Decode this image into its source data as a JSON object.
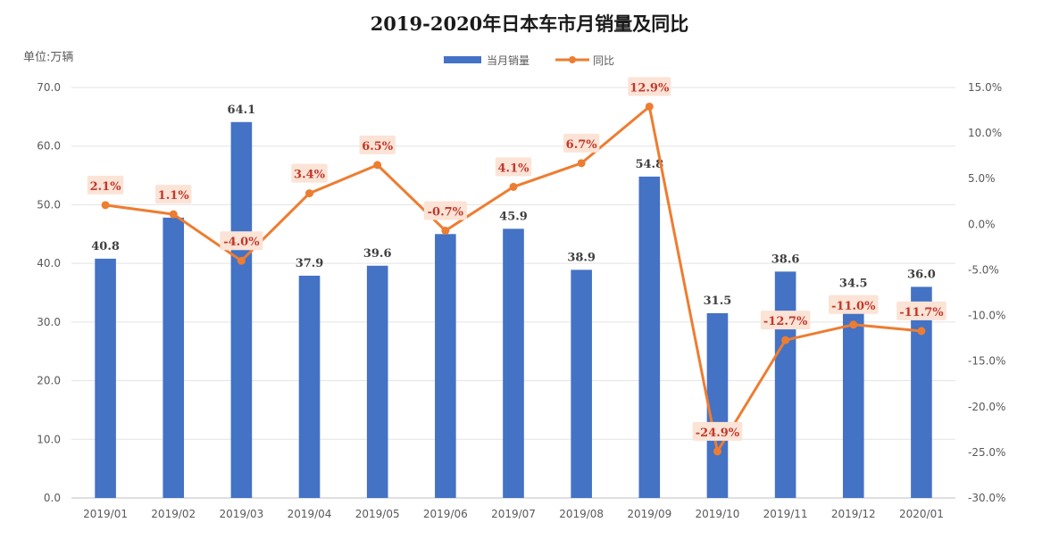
{
  "chart_data": {
    "type": "bar",
    "title": "2019-2020年日本车市月销量及同比",
    "unit_label": "单位:万辆",
    "categories": [
      "2019/01",
      "2019/02",
      "2019/03",
      "2019/04",
      "2019/05",
      "2019/06",
      "2019/07",
      "2019/08",
      "2019/09",
      "2019/10",
      "2019/11",
      "2019/12",
      "2020/01"
    ],
    "series": [
      {
        "name": "当月销量",
        "type": "bar",
        "axis": "left",
        "color": "#4472c4",
        "values": [
          40.8,
          47.8,
          64.1,
          37.9,
          39.6,
          45.0,
          45.9,
          38.9,
          54.8,
          31.5,
          38.6,
          34.5,
          36.0
        ],
        "labels": [
          "40.8",
          "",
          "64.1",
          "37.9",
          "39.6",
          "",
          "45.9",
          "38.9",
          "54.8",
          "31.5",
          "38.6",
          "34.5",
          "36.0"
        ]
      },
      {
        "name": "同比",
        "type": "line",
        "axis": "right",
        "color": "#ed7d31",
        "values": [
          2.1,
          1.1,
          -4.0,
          3.4,
          6.5,
          -0.7,
          4.1,
          6.7,
          12.9,
          -24.9,
          -12.7,
          -11.0,
          -11.7
        ],
        "labels": [
          "2.1%",
          "1.1%",
          "-4.0%",
          "3.4%",
          "6.5%",
          "-0.7%",
          "4.1%",
          "6.7%",
          "12.9%",
          "-24.9%",
          "-12.7%",
          "-11.0%",
          "-11.7%"
        ]
      }
    ],
    "y_left": {
      "min": 0,
      "max": 70,
      "step": 10,
      "ticks": [
        "0.0",
        "10.0",
        "20.0",
        "30.0",
        "40.0",
        "50.0",
        "60.0",
        "70.0"
      ]
    },
    "y_right": {
      "min": -30,
      "max": 15,
      "step": 5,
      "ticks": [
        "-30.0%",
        "-25.0%",
        "-20.0%",
        "-15.0%",
        "-10.0%",
        "-5.0%",
        "0.0%",
        "5.0%",
        "10.0%",
        "15.0%"
      ]
    },
    "legend_position": "top-center",
    "grid": true
  }
}
